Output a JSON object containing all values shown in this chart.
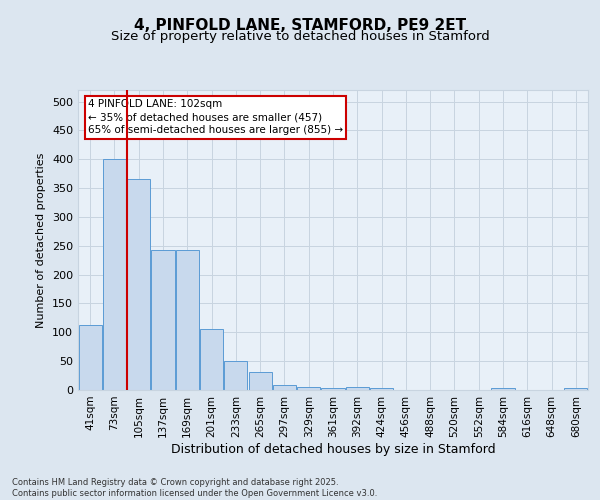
{
  "title": "4, PINFOLD LANE, STAMFORD, PE9 2ET",
  "subtitle": "Size of property relative to detached houses in Stamford",
  "xlabel": "Distribution of detached houses by size in Stamford",
  "ylabel": "Number of detached properties",
  "bar_labels": [
    "41sqm",
    "73sqm",
    "105sqm",
    "137sqm",
    "169sqm",
    "201sqm",
    "233sqm",
    "265sqm",
    "297sqm",
    "329sqm",
    "361sqm",
    "392sqm",
    "424sqm",
    "456sqm",
    "488sqm",
    "520sqm",
    "552sqm",
    "584sqm",
    "616sqm",
    "648sqm",
    "680sqm"
  ],
  "bar_values": [
    113,
    400,
    365,
    243,
    243,
    105,
    50,
    31,
    9,
    6,
    4,
    6,
    4,
    0,
    0,
    0,
    0,
    3,
    0,
    0,
    3
  ],
  "bar_color": "#c8d9ed",
  "bar_edge_color": "#5b9bd5",
  "vline_color": "#cc0000",
  "annotation_text": "4 PINFOLD LANE: 102sqm\n← 35% of detached houses are smaller (457)\n65% of semi-detached houses are larger (855) →",
  "annotation_box_color": "#ffffff",
  "annotation_box_edge": "#cc0000",
  "grid_color": "#c8d4e0",
  "background_color": "#dce6f0",
  "plot_bg_color": "#e8f0f8",
  "ylim": [
    0,
    520
  ],
  "yticks": [
    0,
    50,
    100,
    150,
    200,
    250,
    300,
    350,
    400,
    450,
    500
  ],
  "footer": "Contains HM Land Registry data © Crown copyright and database right 2025.\nContains public sector information licensed under the Open Government Licence v3.0.",
  "title_fontsize": 11,
  "subtitle_fontsize": 9.5
}
